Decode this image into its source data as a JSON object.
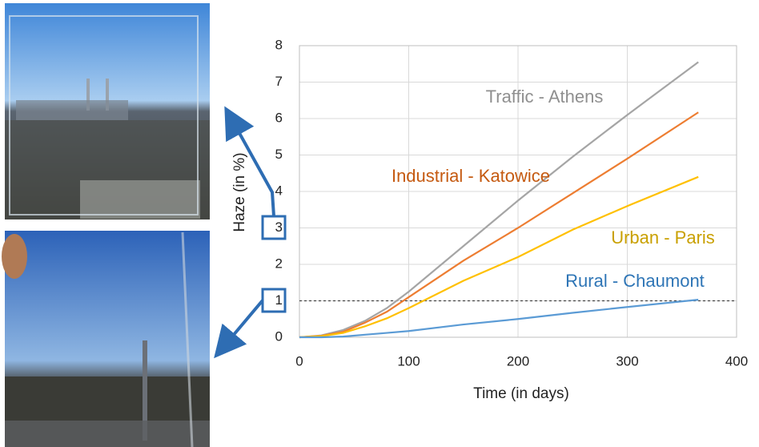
{
  "chart_data": {
    "type": "line",
    "x_label": "Time (in days)",
    "y_label": "Haze (in %)",
    "xlim": [
      0,
      400
    ],
    "xticks": [
      0,
      100,
      200,
      300,
      400
    ],
    "ylim": [
      0,
      8
    ],
    "yticks": [
      0,
      1,
      2,
      3,
      4,
      5,
      6,
      7,
      8
    ],
    "grid": true,
    "reference_line": 1,
    "x": [
      0,
      20,
      40,
      60,
      80,
      100,
      150,
      200,
      250,
      300,
      365
    ],
    "series": [
      {
        "name": "Traffic - Athens",
        "color": "#a5a5a5",
        "values": [
          0,
          0.05,
          0.2,
          0.45,
          0.8,
          1.25,
          2.5,
          3.75,
          4.95,
          6.1,
          7.55
        ]
      },
      {
        "name": "Industrial - Katowice",
        "color": "#ed7d31",
        "values": [
          0,
          0.04,
          0.15,
          0.4,
          0.7,
          1.1,
          2.1,
          3.0,
          3.95,
          4.9,
          6.17
        ]
      },
      {
        "name": "Urban - Paris",
        "color": "#ffc000",
        "values": [
          0,
          0.03,
          0.12,
          0.3,
          0.52,
          0.8,
          1.55,
          2.2,
          2.95,
          3.6,
          4.4
        ]
      },
      {
        "name": "Rural - Chaumont",
        "color": "#5b9bd5",
        "values": [
          0,
          0,
          0.02,
          0.07,
          0.12,
          0.17,
          0.35,
          0.5,
          0.67,
          0.83,
          1.03
        ]
      }
    ]
  }
}
